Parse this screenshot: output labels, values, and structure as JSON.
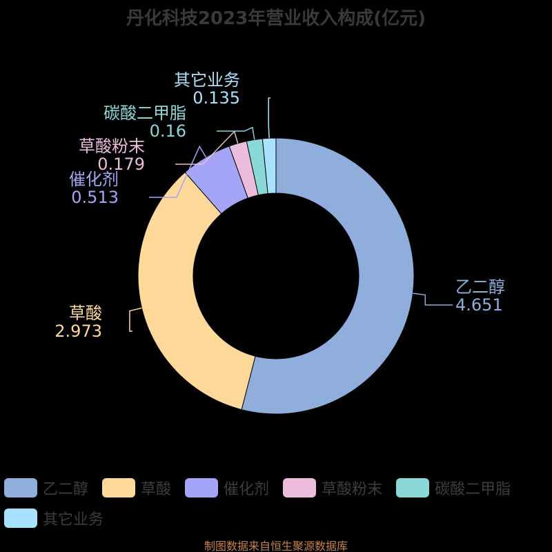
{
  "chart_data": {
    "type": "pie",
    "title": "丹化科技2023年营业收入构成(亿元)",
    "legend_position": "bottom",
    "categories": [
      "乙二醇",
      "草酸",
      "催化剂",
      "草酸粉末",
      "碳酸二甲脂",
      "其它业务"
    ],
    "values": [
      4.651,
      2.973,
      0.513,
      0.179,
      0.16,
      0.135
    ],
    "value_labels": [
      "4.651",
      "2.973",
      "0.513",
      "0.179",
      "0.16",
      "0.135"
    ],
    "colors": [
      "#8faedc",
      "#ffd99a",
      "#a5a5f7",
      "#ecbcdc",
      "#8ad8d8",
      "#a8e2ff"
    ]
  },
  "source_note": "制图数据来自恒生聚源数据库"
}
